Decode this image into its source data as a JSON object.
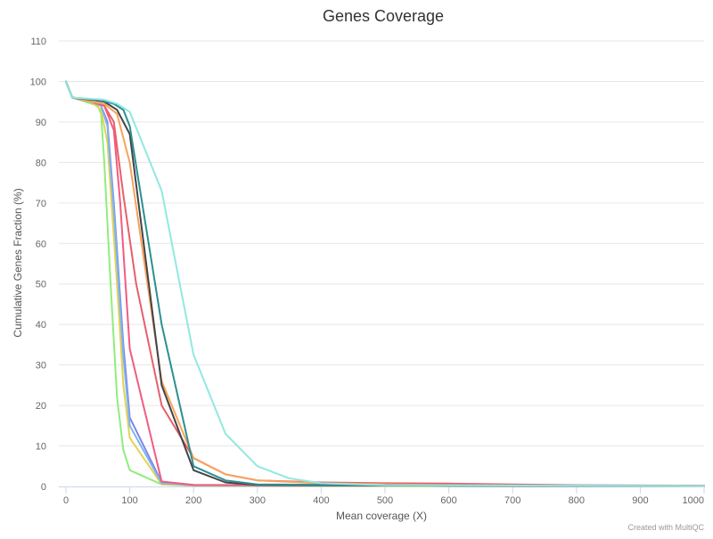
{
  "chart_data": {
    "type": "line",
    "title": "Genes Coverage",
    "xlabel": "Mean coverage (X)",
    "ylabel": "Cumulative Genes Fraction (%)",
    "xlim": [
      0,
      1000
    ],
    "ylim": [
      0,
      110
    ],
    "xticks": [
      0,
      100,
      200,
      300,
      400,
      500,
      600,
      700,
      800,
      900,
      1000
    ],
    "yticks": [
      0,
      10,
      20,
      30,
      40,
      50,
      60,
      70,
      80,
      90,
      100,
      110
    ],
    "grid": true,
    "series": [
      {
        "color": "#90ed7d",
        "points": [
          [
            0,
            100
          ],
          [
            10,
            96
          ],
          [
            50,
            94
          ],
          [
            55,
            92
          ],
          [
            60,
            80
          ],
          [
            70,
            50
          ],
          [
            80,
            22
          ],
          [
            90,
            9
          ],
          [
            100,
            4
          ],
          [
            150,
            0.5
          ],
          [
            200,
            0.2
          ],
          [
            1000,
            0.1
          ]
        ]
      },
      {
        "color": "#e4d354",
        "points": [
          [
            0,
            100
          ],
          [
            10,
            96
          ],
          [
            40,
            95
          ],
          [
            55,
            93
          ],
          [
            65,
            85
          ],
          [
            80,
            50
          ],
          [
            90,
            25
          ],
          [
            100,
            12
          ],
          [
            150,
            0.5
          ],
          [
            200,
            0.2
          ],
          [
            1000,
            0.1
          ]
        ]
      },
      {
        "color": "#8085e9",
        "points": [
          [
            0,
            100
          ],
          [
            10,
            96
          ],
          [
            40,
            95
          ],
          [
            55,
            94
          ],
          [
            65,
            90
          ],
          [
            75,
            70
          ],
          [
            90,
            35
          ],
          [
            100,
            17
          ],
          [
            150,
            1
          ],
          [
            200,
            0.3
          ],
          [
            1000,
            0.1
          ]
        ]
      },
      {
        "color": "#7cb5ec",
        "points": [
          [
            0,
            100
          ],
          [
            10,
            96
          ],
          [
            40,
            95
          ],
          [
            55,
            94
          ],
          [
            65,
            89
          ],
          [
            75,
            68
          ],
          [
            90,
            32
          ],
          [
            100,
            15
          ],
          [
            150,
            0.8
          ],
          [
            200,
            0.3
          ],
          [
            1000,
            0.1
          ]
        ]
      },
      {
        "color": "#f15c80",
        "points": [
          [
            0,
            100
          ],
          [
            10,
            96
          ],
          [
            40,
            95
          ],
          [
            60,
            94
          ],
          [
            75,
            88
          ],
          [
            85,
            70
          ],
          [
            100,
            34
          ],
          [
            150,
            1.2
          ],
          [
            200,
            0.4
          ],
          [
            300,
            0.3
          ],
          [
            1000,
            0.1
          ]
        ]
      },
      {
        "color": "#e75f6a",
        "points": [
          [
            0,
            100
          ],
          [
            10,
            96
          ],
          [
            40,
            95
          ],
          [
            60,
            94
          ],
          [
            75,
            90
          ],
          [
            90,
            72
          ],
          [
            110,
            50
          ],
          [
            150,
            20
          ],
          [
            200,
            7
          ],
          [
            250,
            3
          ],
          [
            300,
            1.5
          ],
          [
            400,
            1
          ],
          [
            500,
            0.8
          ],
          [
            600,
            0.7
          ],
          [
            800,
            0.3
          ],
          [
            1000,
            0.2
          ]
        ]
      },
      {
        "color": "#f7a35c",
        "points": [
          [
            0,
            100
          ],
          [
            10,
            96
          ],
          [
            40,
            95
          ],
          [
            60,
            94.5
          ],
          [
            80,
            92
          ],
          [
            100,
            80
          ],
          [
            150,
            26
          ],
          [
            200,
            7
          ],
          [
            250,
            3
          ],
          [
            300,
            1.5
          ],
          [
            400,
            0.8
          ],
          [
            600,
            0.3
          ],
          [
            1000,
            0.1
          ]
        ]
      },
      {
        "color": "#434348",
        "points": [
          [
            0,
            100
          ],
          [
            10,
            96
          ],
          [
            40,
            95.5
          ],
          [
            60,
            95
          ],
          [
            80,
            93
          ],
          [
            100,
            87
          ],
          [
            150,
            25
          ],
          [
            200,
            4
          ],
          [
            250,
            1
          ],
          [
            300,
            0.4
          ],
          [
            600,
            0.2
          ],
          [
            1000,
            0.1
          ]
        ]
      },
      {
        "color": "#2b908f",
        "points": [
          [
            0,
            100
          ],
          [
            10,
            96
          ],
          [
            50,
            95.5
          ],
          [
            75,
            94.5
          ],
          [
            90,
            93
          ],
          [
            100,
            89
          ],
          [
            150,
            40
          ],
          [
            200,
            5
          ],
          [
            250,
            1.5
          ],
          [
            300,
            0.5
          ],
          [
            600,
            0.2
          ],
          [
            1000,
            0.1
          ]
        ]
      },
      {
        "color": "#91e8e1",
        "points": [
          [
            0,
            100
          ],
          [
            10,
            96
          ],
          [
            60,
            95.5
          ],
          [
            80,
            94.5
          ],
          [
            90,
            93.5
          ],
          [
            100,
            92.5
          ],
          [
            150,
            73
          ],
          [
            200,
            32.5
          ],
          [
            250,
            13
          ],
          [
            300,
            5
          ],
          [
            350,
            2
          ],
          [
            400,
            0.8
          ],
          [
            500,
            0.3
          ],
          [
            1000,
            0.1
          ]
        ]
      }
    ]
  },
  "credit": "Created with MultiQC"
}
